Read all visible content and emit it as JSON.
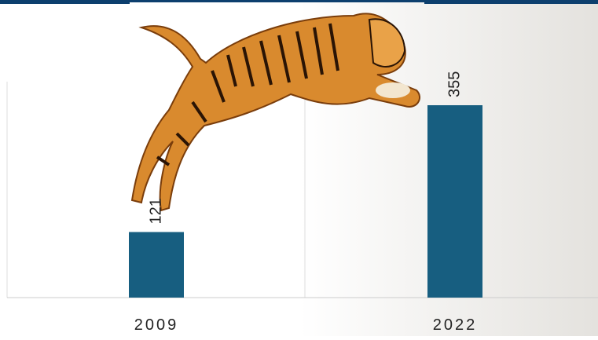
{
  "chart_data": {
    "type": "bar",
    "categories": [
      "2009",
      "2022"
    ],
    "values": [
      121,
      355
    ],
    "color": "#175e80"
  }
}
